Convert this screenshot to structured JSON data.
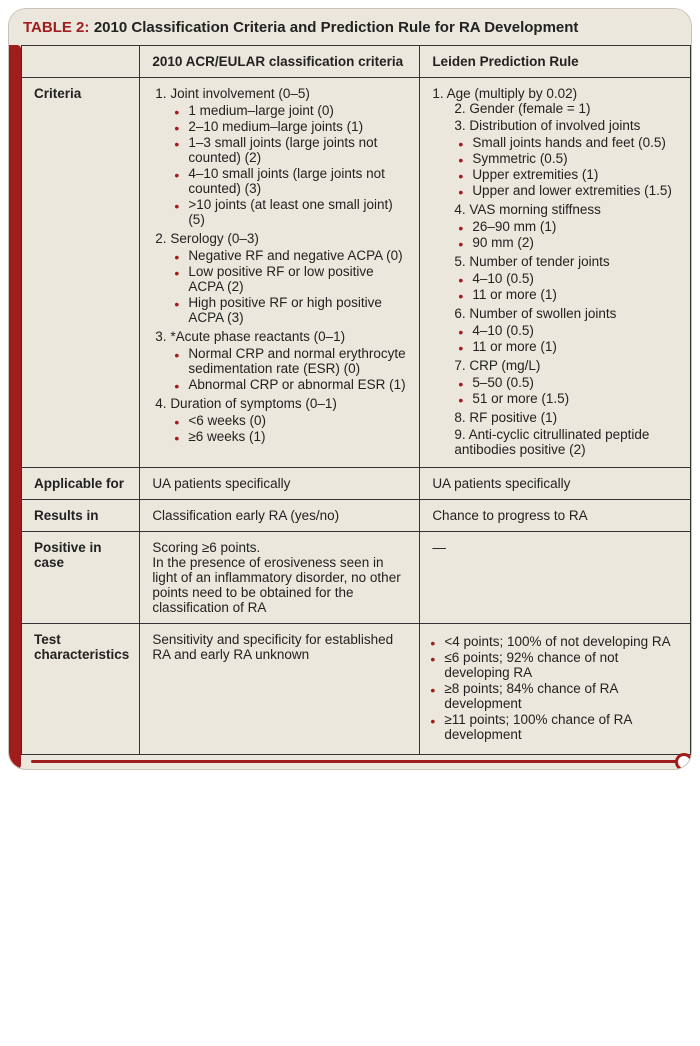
{
  "colors": {
    "accent": "#a11c1c",
    "panel_bg": "#ece7dc",
    "border": "#333333",
    "card_border": "#c9c2b8",
    "text": "#222222"
  },
  "table": {
    "label": "TABLE 2:",
    "title": "2010 Classification Criteria and Prediction Rule for RA Development",
    "headers": {
      "blank": "",
      "col2": "2010 ACR/EULAR classification criteria",
      "col3": "Leiden Prediction Rule"
    },
    "rows": {
      "criteria": {
        "head": "Criteria",
        "acr": {
          "items": [
            {
              "t": "Joint involvement (0–5)",
              "sub": [
                "1 medium–large joint (0)",
                "2–10 medium–large joints (1)",
                "1–3 small joints (large joints not counted) (2)",
                "4–10 small joints (large joints not counted) (3)",
                ">10 joints (at least one small joint) (5)"
              ]
            },
            {
              "t": "Serology (0–3)",
              "sub": [
                "Negative RF and negative ACPA (0)",
                "Low positive RF or low positive ACPA (2)",
                "High positive RF or high positive ACPA (3)"
              ]
            },
            {
              "t": "*Acute phase reactants (0–1)",
              "sub": [
                "Normal CRP and normal erythrocyte sedimentation rate (ESR) (0)",
                "Abnormal CRP or abnormal ESR (1)"
              ]
            },
            {
              "t": "Duration of symptoms (0–1)",
              "sub": [
                "<6 weeks (0)",
                "≥6 weeks (1)"
              ]
            }
          ]
        },
        "leiden": {
          "first": "1. Age (multiply by 0.02)",
          "items": [
            {
              "n": "2.",
              "t": "Gender (female = 1)"
            },
            {
              "n": "3.",
              "t": "Distribution of involved joints",
              "sub": [
                "Small joints hands and feet (0.5)",
                "Symmetric (0.5)",
                "Upper extremities (1)",
                "Upper and lower extremities (1.5)"
              ]
            },
            {
              "n": "4.",
              "t": "VAS morning stiffness",
              "sub": [
                "26–90 mm (1)",
                "90 mm (2)"
              ]
            },
            {
              "n": "5.",
              "t": "Number of tender joints",
              "sub": [
                "4–10 (0.5)",
                "11 or more (1)"
              ]
            },
            {
              "n": "6.",
              "t": "Number of swollen joints",
              "sub": [
                "4–10 (0.5)",
                "11 or more (1)"
              ]
            },
            {
              "n": "7.",
              "t": "CRP (mg/L)",
              "sub": [
                "5–50 (0.5)",
                "51 or more (1.5)"
              ]
            },
            {
              "n": "8.",
              "t": "RF positive (1)"
            },
            {
              "n": "9.",
              "t": "Anti-cyclic citrullinated peptide antibodies positive (2)"
            }
          ]
        }
      },
      "applicable": {
        "head": "Applicable for",
        "acr": "UA patients specifically",
        "leiden": "UA patients specifically"
      },
      "results": {
        "head": "Results in",
        "acr": "Classification early RA (yes/no)",
        "leiden": "Chance to progress to RA"
      },
      "positive": {
        "head": "Positive in case",
        "acr": "Scoring ≥6 points.\nIn the presence of erosiveness seen in light of an inflammatory disorder, no other points need to be obtained for the classification of RA",
        "leiden": "—"
      },
      "test": {
        "head": "Test characteristics",
        "acr": "Sensitivity and specificity for established RA and early RA unknown",
        "leiden": [
          "<4 points; 100% of not developing RA",
          "≤6 points; 92% chance of not developing RA",
          "≥8 points; 84% chance of RA development",
          "≥11 points; 100% chance of RA development"
        ]
      }
    }
  }
}
